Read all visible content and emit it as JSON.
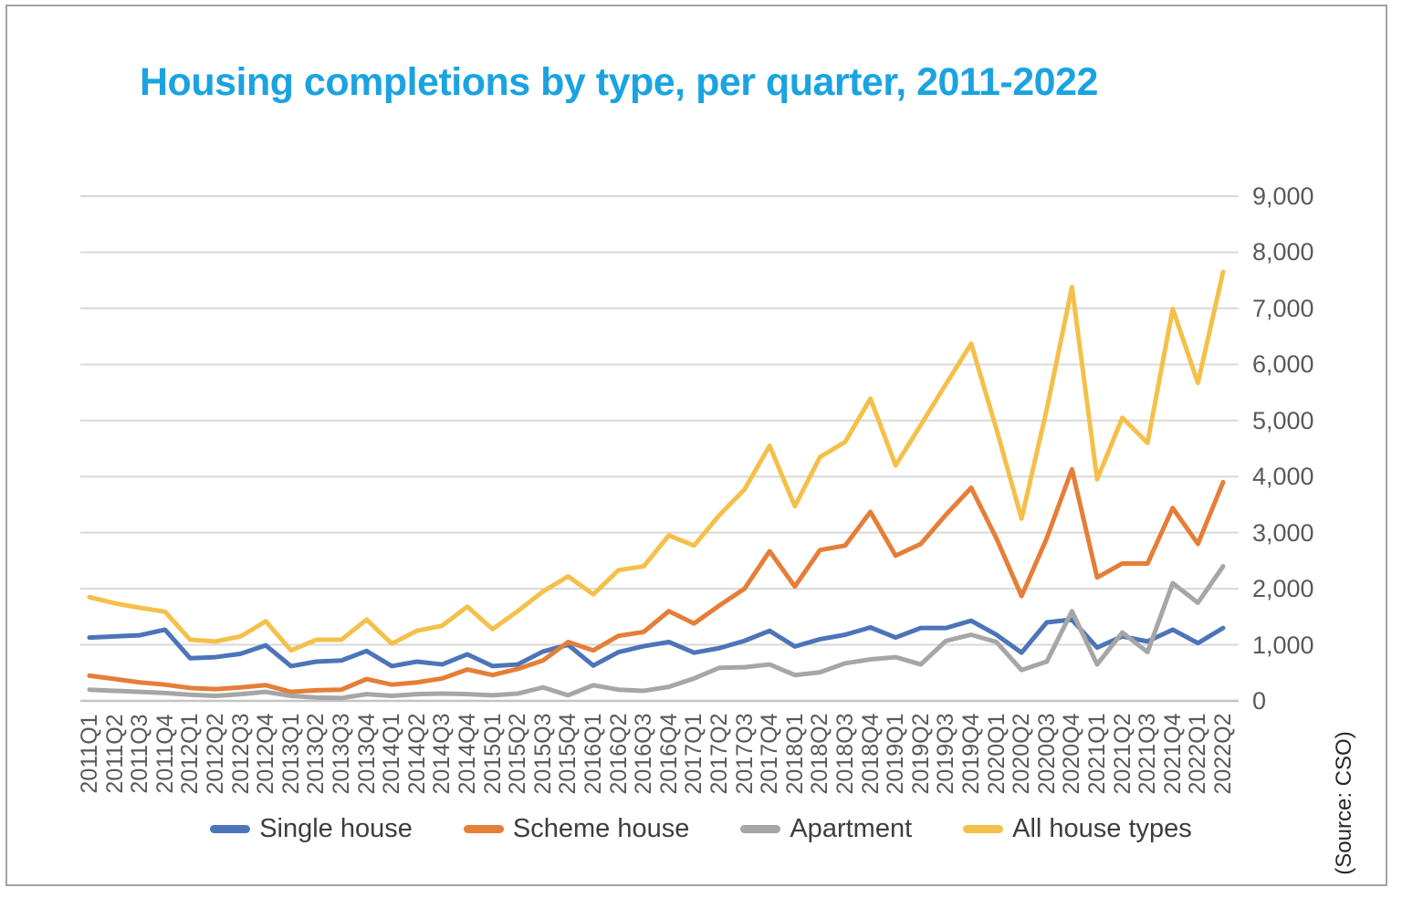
{
  "page": {
    "title": "Housing completions by type, per quarter, 2011-2022",
    "source_note": "(Source: CSO)"
  },
  "colors": {
    "title_text": "#1ba3e1",
    "axis_text": "#595959",
    "legend_text": "#3d3d3d",
    "gridline": "#d9d9d9",
    "zero_line": "#c4c4c4",
    "frame_border": "#a2a2a2"
  },
  "chart_data": {
    "type": "line",
    "title": "Housing completions by type, per quarter, 2011-2022",
    "legend_position": "bottom",
    "grid": true,
    "y_axis": {
      "min": 0,
      "max": 9000,
      "tick_step": 1000,
      "position": "right",
      "tick_labels": [
        "0",
        "1,000",
        "2,000",
        "3,000",
        "4,000",
        "5,000",
        "6,000",
        "7,000",
        "8,000",
        "9,000"
      ]
    },
    "categories": [
      "2011Q1",
      "2011Q2",
      "2011Q3",
      "2011Q4",
      "2012Q1",
      "2012Q2",
      "2012Q3",
      "2012Q4",
      "2013Q1",
      "2013Q2",
      "2013Q3",
      "2013Q4",
      "2014Q1",
      "2014Q2",
      "2014Q3",
      "2014Q4",
      "2015Q1",
      "2015Q2",
      "2015Q3",
      "2015Q4",
      "2016Q1",
      "2016Q2",
      "2016Q3",
      "2016Q4",
      "2017Q1",
      "2017Q2",
      "2017Q3",
      "2017Q4",
      "2018Q1",
      "2018Q2",
      "2018Q3",
      "2018Q4",
      "2019Q1",
      "2019Q2",
      "2019Q3",
      "2019Q4",
      "2020Q1",
      "2020Q2",
      "2020Q3",
      "2020Q4",
      "2021Q1",
      "2021Q2",
      "2021Q3",
      "2021Q4",
      "2022Q1",
      "2022Q2"
    ],
    "series": [
      {
        "name": "Single house",
        "color": "#4c74b9",
        "values": [
          1130,
          1150,
          1170,
          1270,
          760,
          780,
          840,
          990,
          620,
          700,
          720,
          890,
          620,
          700,
          650,
          830,
          620,
          650,
          880,
          1000,
          630,
          870,
          975,
          1050,
          860,
          940,
          1070,
          1250,
          970,
          1100,
          1180,
          1310,
          1130,
          1300,
          1300,
          1430,
          1180,
          860,
          1400,
          1450,
          950,
          1150,
          1060,
          1270,
          1030,
          1300
        ]
      },
      {
        "name": "Scheme house",
        "color": "#e57e38",
        "values": [
          450,
          390,
          330,
          290,
          230,
          210,
          240,
          280,
          160,
          190,
          200,
          390,
          290,
          330,
          400,
          560,
          460,
          570,
          720,
          1050,
          900,
          1160,
          1230,
          1600,
          1380,
          1700,
          2000,
          2670,
          2040,
          2690,
          2770,
          3370,
          2590,
          2800,
          3320,
          3800,
          2900,
          1870,
          2900,
          4130,
          2200,
          2450,
          2450,
          3440,
          2800,
          3900
        ]
      },
      {
        "name": "Apartment",
        "color": "#a6a6a6",
        "values": [
          200,
          180,
          160,
          140,
          110,
          90,
          120,
          160,
          90,
          60,
          50,
          120,
          90,
          120,
          130,
          120,
          100,
          130,
          240,
          100,
          280,
          200,
          180,
          250,
          400,
          590,
          600,
          650,
          460,
          510,
          670,
          740,
          780,
          650,
          1070,
          1180,
          1050,
          550,
          700,
          1600,
          650,
          1220,
          870,
          2100,
          1750,
          2400
        ]
      },
      {
        "name": "All house types",
        "color": "#f4c04a",
        "values": [
          1850,
          1740,
          1660,
          1590,
          1090,
          1060,
          1150,
          1420,
          900,
          1090,
          1090,
          1450,
          1020,
          1250,
          1340,
          1680,
          1280,
          1600,
          1950,
          2220,
          1900,
          2330,
          2400,
          2950,
          2770,
          3310,
          3770,
          4550,
          3470,
          4350,
          4620,
          5390,
          4200,
          4920,
          5650,
          6370,
          4850,
          3250,
          5200,
          7380,
          3950,
          5050,
          4600,
          6990,
          5670,
          7650
        ]
      }
    ]
  }
}
